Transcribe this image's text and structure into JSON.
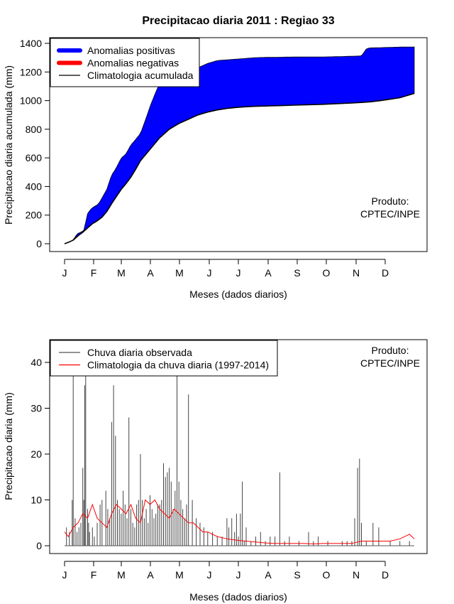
{
  "chart_data": [
    {
      "type": "area",
      "title": "Precipitacao diaria 2011 : Regiao 33",
      "xlabel": "Meses (dados diarios)",
      "ylabel": "Precipitacao diaria acumulada (mm)",
      "xlim": [
        1,
        365
      ],
      "ylim": [
        0,
        1400
      ],
      "yticks": [
        0,
        200,
        400,
        600,
        800,
        1000,
        1200,
        1400
      ],
      "month_ticks": [
        "J",
        "F",
        "M",
        "A",
        "M",
        "J",
        "J",
        "A",
        "S",
        "O",
        "N",
        "D"
      ],
      "legend": {
        "placement": "top-left",
        "items": [
          {
            "label": "Anomalias positivas",
            "color": "#0000ff"
          },
          {
            "label": "Anomalias negativas",
            "color": "#ff0000"
          },
          {
            "label": "Climatologia acumulada",
            "color": "#000000"
          }
        ]
      },
      "annotation": {
        "line1": "Produto:",
        "line2": "CPTEC/INPE"
      },
      "series": [
        {
          "name": "Precipitacao acumulada observada",
          "day": [
            1,
            5,
            10,
            14,
            18,
            22,
            24,
            28,
            32,
            36,
            40,
            45,
            50,
            54,
            56,
            60,
            64,
            66,
            70,
            74,
            80,
            86,
            90,
            96,
            100,
            106,
            112,
            120,
            125,
            130,
            135,
            140,
            145,
            150,
            160,
            170,
            180,
            190,
            200,
            210,
            220,
            230,
            250,
            270,
            290,
            300,
            310,
            315,
            318,
            330,
            340,
            350,
            365
          ],
          "value": [
            0,
            10,
            25,
            70,
            80,
            100,
            200,
            240,
            260,
            275,
            320,
            380,
            480,
            520,
            545,
            600,
            620,
            640,
            690,
            720,
            770,
            880,
            960,
            1060,
            1120,
            1150,
            1170,
            1180,
            1190,
            1210,
            1215,
            1230,
            1245,
            1260,
            1280,
            1285,
            1290,
            1295,
            1300,
            1302,
            1302,
            1304,
            1305,
            1305,
            1308,
            1310,
            1312,
            1360,
            1368,
            1370,
            1372,
            1374,
            1375
          ]
        },
        {
          "name": "Climatologia acumulada",
          "day": [
            1,
            5,
            10,
            15,
            20,
            25,
            30,
            35,
            40,
            45,
            50,
            55,
            60,
            65,
            70,
            75,
            80,
            85,
            90,
            95,
            100,
            105,
            110,
            115,
            120,
            125,
            130,
            135,
            140,
            145,
            150,
            160,
            170,
            180,
            190,
            200,
            210,
            220,
            230,
            240,
            250,
            260,
            270,
            280,
            290,
            300,
            310,
            320,
            330,
            340,
            350,
            360,
            365
          ],
          "value": [
            0,
            10,
            25,
            55,
            80,
            110,
            140,
            160,
            185,
            225,
            280,
            330,
            380,
            420,
            465,
            520,
            580,
            620,
            660,
            700,
            740,
            770,
            800,
            820,
            840,
            855,
            870,
            885,
            900,
            910,
            920,
            935,
            945,
            952,
            957,
            960,
            962,
            964,
            966,
            968,
            970,
            972,
            974,
            977,
            980,
            983,
            987,
            992,
            1000,
            1010,
            1020,
            1040,
            1050
          ]
        }
      ]
    },
    {
      "type": "bar",
      "xlabel": "Meses (dados diarios)",
      "ylabel": "Precipitacao diaria (mm)",
      "xlim": [
        1,
        365
      ],
      "ylim": [
        0,
        40
      ],
      "yticks": [
        0,
        10,
        20,
        30,
        40
      ],
      "month_ticks": [
        "J",
        "F",
        "M",
        "A",
        "M",
        "J",
        "J",
        "A",
        "S",
        "O",
        "N",
        "D"
      ],
      "legend": {
        "placement": "top-left",
        "items": [
          {
            "label": "Chuva diaria observada",
            "color": "#555555"
          },
          {
            "label": "Climatologia da chuva diaria (1997-2014)",
            "color": "#ff0000"
          }
        ]
      },
      "annotation": {
        "line1": "Produto:",
        "line2": "CPTEC/INPE"
      },
      "series": [
        {
          "name": "Chuva diaria observada",
          "day": [
            3,
            6,
            9,
            10,
            12,
            14,
            16,
            18,
            20,
            21,
            22,
            23,
            25,
            26,
            27,
            30,
            32,
            35,
            38,
            40,
            44,
            46,
            48,
            50,
            52,
            54,
            56,
            58,
            60,
            62,
            64,
            66,
            68,
            70,
            72,
            74,
            76,
            78,
            80,
            82,
            84,
            86,
            88,
            90,
            92,
            94,
            96,
            98,
            100,
            102,
            104,
            106,
            108,
            110,
            112,
            114,
            116,
            118,
            120,
            122,
            124,
            126,
            128,
            130,
            134,
            138,
            142,
            146,
            150,
            155,
            160,
            165,
            170,
            172,
            175,
            178,
            180,
            182,
            184,
            186,
            188,
            190,
            195,
            200,
            205,
            210,
            215,
            220,
            225,
            230,
            235,
            245,
            255,
            260,
            265,
            275,
            290,
            295,
            300,
            303,
            306,
            308,
            310,
            315,
            322,
            328,
            340,
            350,
            360
          ],
          "value": [
            4,
            3,
            10,
            40,
            6,
            3,
            4,
            5,
            17,
            10,
            35,
            38,
            8,
            5,
            3,
            4,
            2,
            5,
            9,
            10,
            12,
            8,
            6,
            27,
            35,
            24,
            10,
            8,
            7,
            12,
            9,
            6,
            28,
            8,
            5,
            4,
            9,
            10,
            20,
            10,
            6,
            8,
            5,
            11,
            8,
            6,
            7,
            9,
            9,
            10,
            18,
            15,
            16,
            17,
            14,
            8,
            12,
            45,
            14,
            10,
            8,
            6,
            9,
            33,
            10,
            6,
            5,
            4,
            3,
            3,
            2,
            2,
            6,
            4,
            6,
            3,
            7,
            2,
            7,
            14,
            1,
            4,
            1,
            2,
            3,
            1,
            2,
            2,
            16,
            1,
            2,
            1,
            3,
            1,
            2,
            1,
            1,
            1,
            1,
            6,
            17,
            19,
            5,
            1,
            5,
            4,
            1,
            1,
            1
          ]
        },
        {
          "name": "Climatologia da chuva diaria (1997-2014)",
          "day": [
            1,
            5,
            10,
            15,
            20,
            25,
            30,
            35,
            40,
            45,
            50,
            55,
            60,
            65,
            70,
            75,
            80,
            85,
            90,
            95,
            100,
            105,
            110,
            115,
            120,
            125,
            130,
            135,
            140,
            145,
            150,
            160,
            170,
            180,
            190,
            200,
            210,
            220,
            230,
            240,
            250,
            260,
            270,
            280,
            290,
            300,
            310,
            320,
            330,
            340,
            350,
            355,
            360,
            365
          ],
          "value": [
            3,
            2,
            4,
            5,
            7,
            6,
            9,
            6,
            5,
            4,
            7,
            9,
            8,
            7,
            9,
            6,
            5,
            10,
            9,
            10,
            8,
            7,
            6,
            8,
            7,
            6,
            5,
            5,
            4,
            3,
            3,
            2,
            1.5,
            1.2,
            1,
            0.8,
            0.6,
            0.5,
            0.5,
            0.5,
            0.5,
            0.4,
            0.5,
            0.5,
            0.5,
            0.5,
            1,
            1,
            1,
            1,
            1.5,
            2,
            2.5,
            1.5
          ]
        }
      ]
    }
  ]
}
